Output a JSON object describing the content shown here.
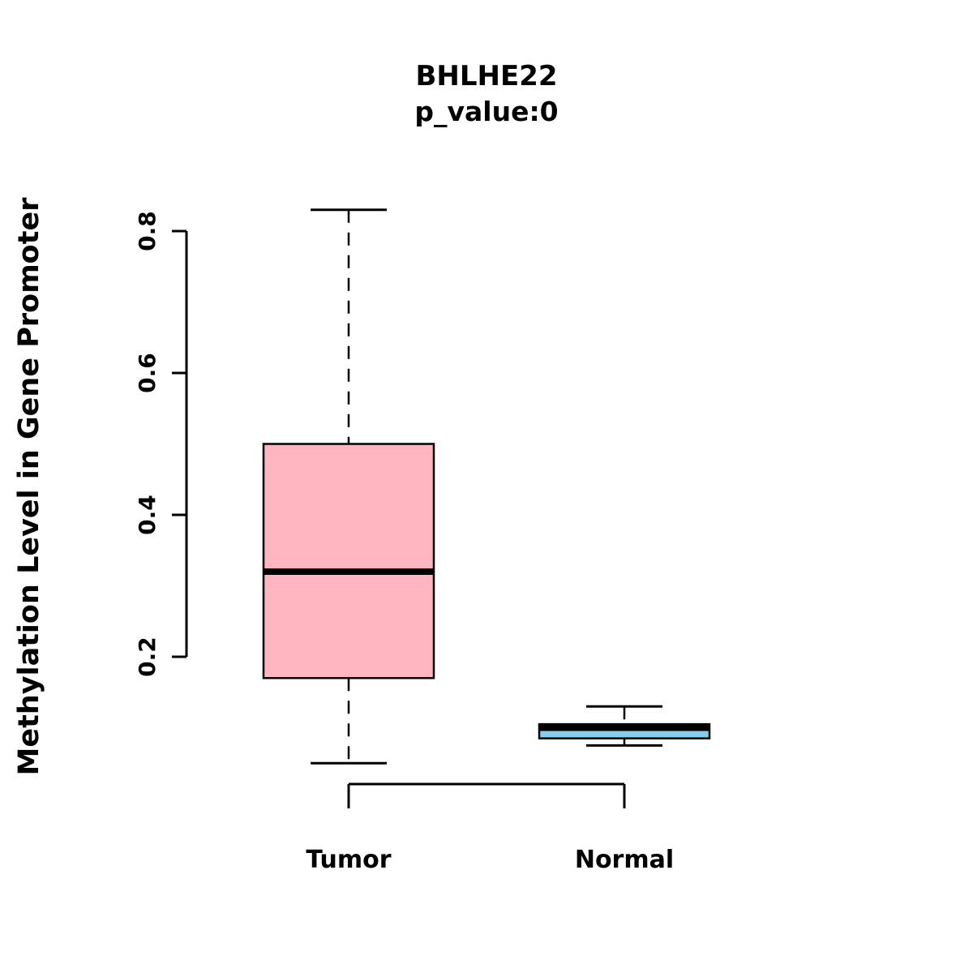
{
  "chart_data": {
    "type": "boxplot",
    "title": "BHLHE22",
    "subtitle": "p_value:0",
    "ylabel": "Methylation Level in Gene Promoter",
    "xlabel": "",
    "categories": [
      "Tumor",
      "Normal"
    ],
    "yticks": [
      0.2,
      0.4,
      0.6,
      0.8
    ],
    "ylim": [
      0.0,
      0.9
    ],
    "grid": false,
    "legend": null,
    "series": [
      {
        "name": "Tumor",
        "color": "#FFB6C1",
        "whisker_low": 0.05,
        "q1": 0.17,
        "median": 0.32,
        "q3": 0.5,
        "whisker_high": 0.83
      },
      {
        "name": "Normal",
        "color": "#87CEEB",
        "whisker_low": 0.075,
        "q1": 0.085,
        "median": 0.1,
        "q3": 0.105,
        "whisker_high": 0.13
      }
    ]
  }
}
